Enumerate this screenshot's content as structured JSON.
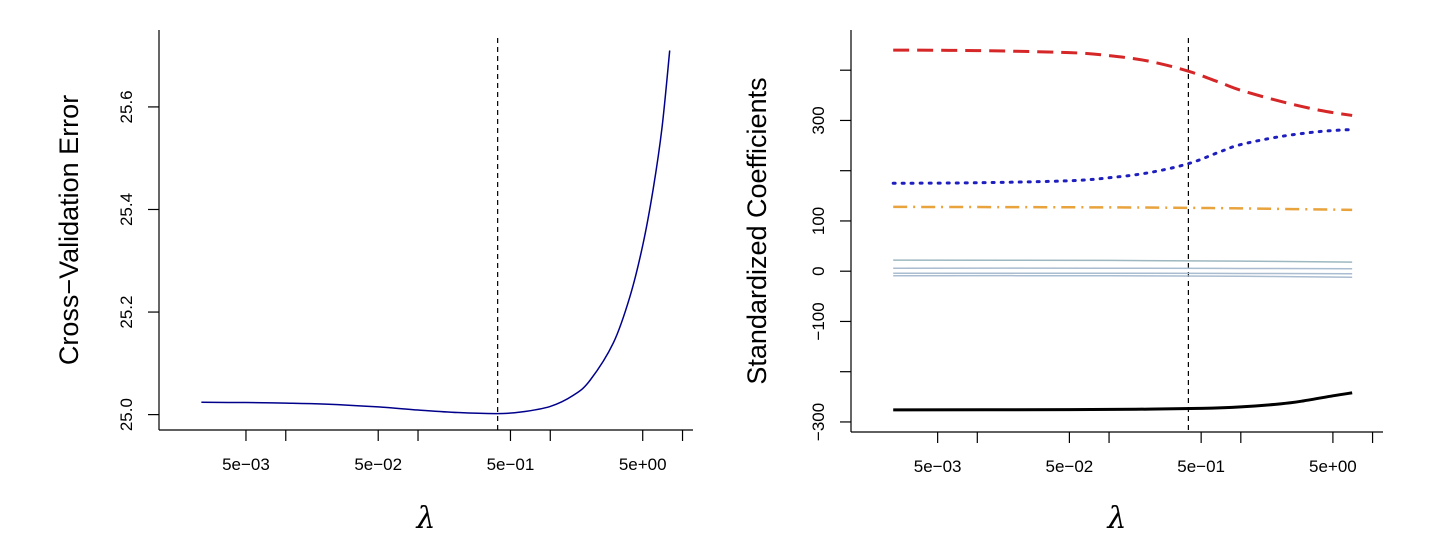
{
  "chart_data": [
    {
      "type": "line",
      "title": "",
      "xlabel": "λ",
      "ylabel": "Cross−Validation Error",
      "x_scale": "log",
      "xlim": [
        0.0011,
        12
      ],
      "ylim": [
        24.97,
        25.75
      ],
      "x_ticks": [
        0.005,
        0.05,
        0.5,
        5
      ],
      "x_tick_labels": [
        "5e−03",
        "5e−02",
        "5e−01",
        "5e+00"
      ],
      "x_minor_ticks": [
        0.01,
        0.1,
        1,
        10
      ],
      "y_ticks": [
        25.0,
        25.2,
        25.4,
        25.6
      ],
      "y_tick_labels": [
        "25.0",
        "25.2",
        "25.4",
        "25.6"
      ],
      "vline": {
        "x": 0.4
      },
      "grid": false,
      "legend": "none",
      "series": [
        {
          "color": "#00008B",
          "linestyle": "solid",
          "x": [
            0.0023,
            0.005,
            0.01,
            0.02,
            0.05,
            0.1,
            0.2,
            0.4,
            0.6,
            1.0,
            1.5,
            2.0,
            3.0,
            4.0,
            5.0,
            6.0,
            7.0,
            8.0
          ],
          "y": [
            25.024,
            25.0235,
            25.0225,
            25.0205,
            25.015,
            25.009,
            25.004,
            25.002,
            25.005,
            25.016,
            25.038,
            25.067,
            25.14,
            25.23,
            25.33,
            25.44,
            25.56,
            25.71
          ]
        }
      ]
    },
    {
      "type": "line",
      "title": "",
      "xlabel": "λ",
      "ylabel": "Standardized Coefficients",
      "x_scale": "log",
      "xlim": [
        0.0011,
        12
      ],
      "ylim": [
        -320,
        480
      ],
      "x_ticks": [
        0.005,
        0.05,
        0.5,
        5
      ],
      "x_tick_labels": [
        "5e−03",
        "5e−02",
        "5e−01",
        "5e+00"
      ],
      "x_minor_ticks": [
        0.01,
        0.1,
        1,
        10
      ],
      "y_ticks": [
        -300,
        -200,
        -100,
        0,
        100,
        200,
        300,
        400
      ],
      "y_tick_labels": [
        "−300",
        "",
        "−100",
        "0",
        "100",
        "",
        "300",
        ""
      ],
      "vline": {
        "x": 0.4
      },
      "grid": false,
      "legend": "none",
      "series": [
        {
          "color": "#D62728",
          "linestyle": "dashed",
          "x": [
            0.0023,
            0.01,
            0.05,
            0.1,
            0.2,
            0.4,
            0.7,
            1.0,
            2.0,
            4.0,
            7.0
          ],
          "y": [
            440,
            439,
            435,
            429,
            418,
            398,
            375,
            360,
            338,
            320,
            310
          ]
        },
        {
          "color": "#1F1FBF",
          "linestyle": "dotted",
          "x": [
            0.0023,
            0.01,
            0.05,
            0.1,
            0.2,
            0.4,
            0.7,
            1.0,
            2.0,
            4.0,
            7.0
          ],
          "y": [
            175,
            176,
            180,
            186,
            196,
            214,
            238,
            252,
            268,
            278,
            282
          ]
        },
        {
          "color": "#E8A33C",
          "linestyle": "dashdot",
          "x": [
            0.0023,
            0.1,
            0.4,
            1.0,
            7.0
          ],
          "y": [
            128,
            127,
            126,
            125,
            122
          ]
        },
        {
          "color": "#9DB8C0",
          "linestyle": "solid",
          "x": [
            0.0023,
            0.1,
            1.0,
            7.0
          ],
          "y": [
            22,
            21.5,
            20,
            18
          ]
        },
        {
          "color": "#A9BCD0",
          "linestyle": "solid",
          "x": [
            0.0023,
            0.1,
            1.0,
            7.0
          ],
          "y": [
            6,
            6,
            5.5,
            5
          ]
        },
        {
          "color": "#A9BCD0",
          "linestyle": "solid",
          "x": [
            0.0023,
            0.1,
            1.0,
            7.0
          ],
          "y": [
            -4,
            -4,
            -4.5,
            -5
          ]
        },
        {
          "color": "#A9BCD0",
          "linestyle": "solid",
          "x": [
            0.0023,
            0.1,
            1.0,
            7.0
          ],
          "y": [
            -9,
            -9,
            -10,
            -12
          ]
        },
        {
          "color": "#000000",
          "linestyle": "solid",
          "x": [
            0.0023,
            0.05,
            0.2,
            0.5,
            1.0,
            2.0,
            3.0,
            5.0,
            7.0
          ],
          "y": [
            -276,
            -275.5,
            -274.5,
            -273,
            -270,
            -264,
            -258,
            -248,
            -242
          ]
        }
      ]
    }
  ]
}
